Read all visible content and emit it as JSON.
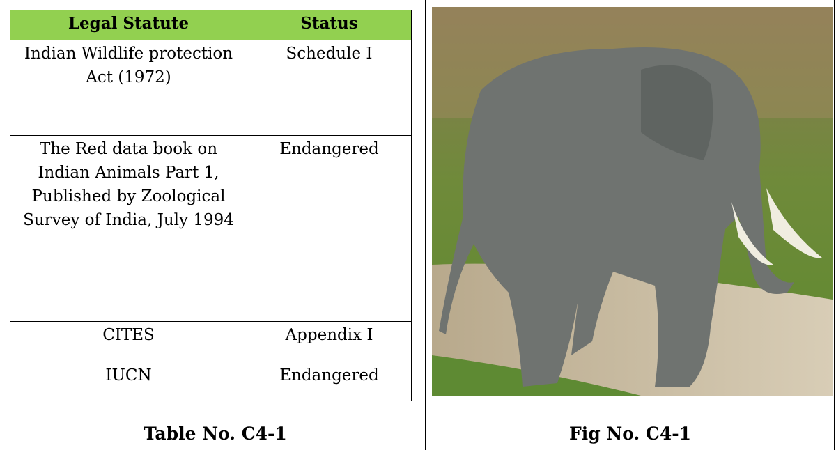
{
  "table": {
    "header": [
      "Legal Statute",
      "Status"
    ],
    "rows": [
      [
        "Indian Wildlife protection Act (1972)",
        "Schedule I"
      ],
      [
        "The Red data book on Indian Animals Part 1, Published by Zoological Survey of India, July 1994",
        "Endangered"
      ],
      [
        "CITES",
        "Appendix I"
      ],
      [
        "IUCN",
        "Endangered"
      ]
    ]
  },
  "captions": {
    "table": "Table No. C4-1",
    "figure": "Fig No. C4-1"
  }
}
